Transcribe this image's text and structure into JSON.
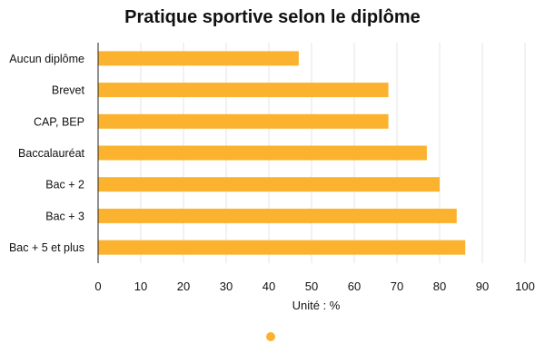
{
  "chart_data": {
    "type": "bar",
    "orientation": "horizontal",
    "title": "Pratique sportive selon le diplôme",
    "xlabel": "Unité : %",
    "ylabel": "",
    "categories": [
      "Aucun diplôme",
      "Brevet",
      "CAP, BEP",
      "Baccalauréat",
      "Bac + 2",
      "Bac + 3",
      "Bac + 5 et plus"
    ],
    "values": [
      47,
      68,
      68,
      77,
      80,
      84,
      86
    ],
    "xlim": [
      0,
      100
    ],
    "xticks": [
      "0",
      "10",
      "20",
      "30",
      "40",
      "50",
      "60",
      "70",
      "80",
      "90",
      "100"
    ],
    "grid": true,
    "legend": "bottom",
    "bar_color": "#FBB22E"
  }
}
